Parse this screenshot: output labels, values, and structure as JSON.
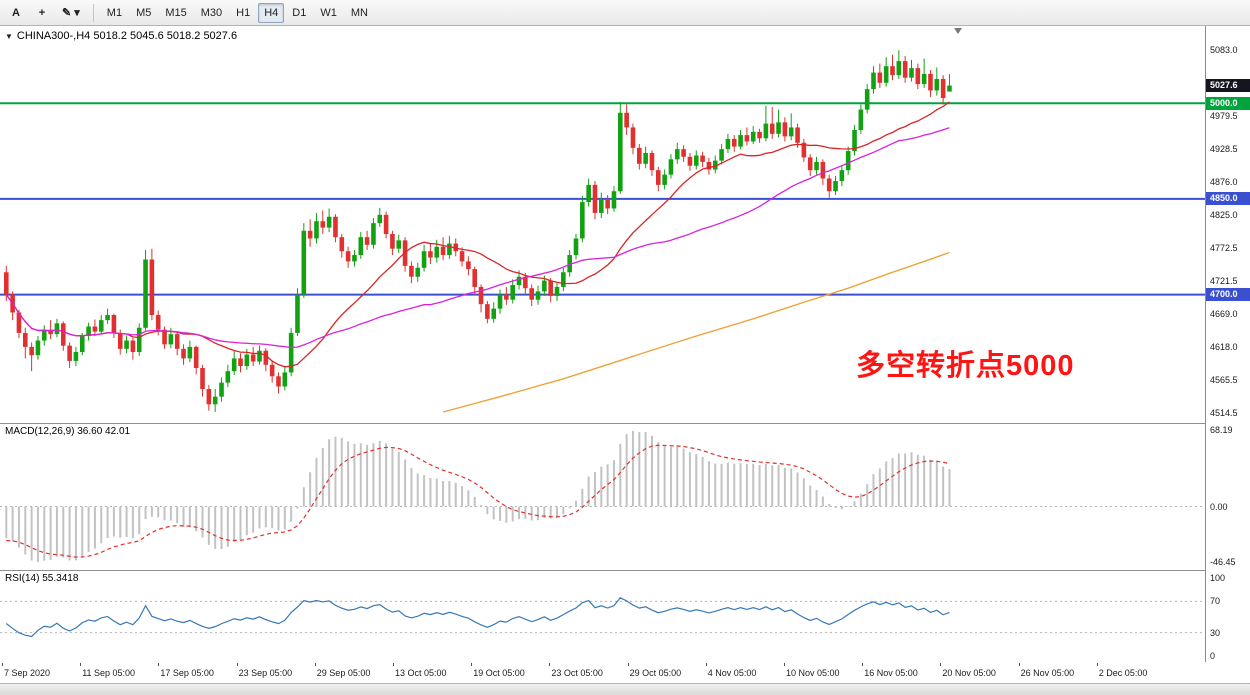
{
  "toolbar": {
    "tools": [
      {
        "name": "cursor-tool-button",
        "label": "A"
      },
      {
        "name": "crosshair-tool-button",
        "label": "+"
      },
      {
        "name": "objects-tool-button",
        "label": "✎ ▾"
      }
    ],
    "timeframes": [
      {
        "label": "M1"
      },
      {
        "label": "M5"
      },
      {
        "label": "M15"
      },
      {
        "label": "M30"
      },
      {
        "label": "H1"
      },
      {
        "label": "H4",
        "active": true
      },
      {
        "label": "D1"
      },
      {
        "label": "W1"
      },
      {
        "label": "MN"
      }
    ]
  },
  "chart": {
    "title": "CHINA300-,H4  5018.2 5045.6 5018.2 5027.6",
    "annotation": {
      "text": "多空转折点5000",
      "color": "#ff1414"
    },
    "current_price_badge": {
      "label": "5027.6",
      "price": 5027.6,
      "bg": "#15151f"
    }
  },
  "indicators": {
    "macd": {
      "label": "MACD(12,26,9) 36.60 42.01",
      "axis": [
        "68.19",
        "0.00",
        "-46.45"
      ]
    },
    "rsi": {
      "label": "RSI(14) 55.3418",
      "axis": [
        100,
        70,
        30,
        0
      ],
      "levels": [
        70,
        30
      ]
    }
  },
  "chart_data": {
    "type": "candlestick",
    "symbol": "CHINA300-",
    "timeframe": "H4",
    "ohlc_current": {
      "open": 5018.2,
      "high": 5045.6,
      "low": 5018.2,
      "close": 5027.6
    },
    "colors": {
      "up": "#12a112",
      "down": "#e03030",
      "ma_fast": "#d92525",
      "ma_slow": "#d922d9",
      "ma_long": "#eda33c",
      "macd_hist": "#c2c2c2",
      "macd_signal": "#e03030",
      "rsi_line": "#3878b8"
    },
    "y_axis_ticks": [
      "5083.0",
      "4979.5",
      "4928.5",
      "4876.0",
      "4825.0",
      "4772.5",
      "4721.5",
      "4669.0",
      "4618.0",
      "4565.5",
      "4514.5"
    ],
    "x_axis_labels": [
      "7 Sep 2020",
      "11 Sep 05:00",
      "17 Sep 05:00",
      "23 Sep 05:00",
      "29 Sep 05:00",
      "13 Oct 05:00",
      "19 Oct 05:00",
      "23 Oct 05:00",
      "29 Oct 05:00",
      "4 Nov 05:00",
      "10 Nov 05:00",
      "16 Nov 05:00",
      "20 Nov 05:00",
      "26 Nov 05:00",
      "2 Dec 05:00"
    ],
    "horizontal_lines": [
      {
        "price": 5000.0,
        "label": "5000.0",
        "color": "#00a43c"
      },
      {
        "price": 4850.0,
        "label": "4850.0",
        "color": "#3a50d0"
      },
      {
        "price": 4700.0,
        "label": "4700.0",
        "color": "#3a50d0"
      }
    ],
    "moving_averages": {
      "fast_period": 20,
      "slow_period": 45,
      "long_line_points": [
        [
          69,
          4516
        ],
        [
          78,
          4540
        ],
        [
          88,
          4568
        ],
        [
          98,
          4600
        ],
        [
          108,
          4632
        ],
        [
          118,
          4662
        ],
        [
          126,
          4688
        ],
        [
          133,
          4710
        ],
        [
          140,
          4735
        ],
        [
          145,
          4752
        ],
        [
          149,
          4766
        ]
      ]
    },
    "indicator_seeds": {
      "ema12": 4730,
      "ema26": 4752,
      "signal": -25,
      "rsi_avg_gain": 5,
      "rsi_avg_loss": 7
    },
    "candles": [
      [
        4735,
        4745,
        4690,
        4700
      ],
      [
        4700,
        4705,
        4660,
        4672
      ],
      [
        4672,
        4676,
        4632,
        4640
      ],
      [
        4640,
        4648,
        4600,
        4618
      ],
      [
        4618,
        4625,
        4580,
        4605
      ],
      [
        4605,
        4635,
        4598,
        4628
      ],
      [
        4628,
        4652,
        4620,
        4645
      ],
      [
        4645,
        4660,
        4630,
        4638
      ],
      [
        4638,
        4662,
        4633,
        4655
      ],
      [
        4655,
        4658,
        4612,
        4620
      ],
      [
        4620,
        4625,
        4585,
        4596
      ],
      [
        4596,
        4618,
        4588,
        4610
      ],
      [
        4610,
        4640,
        4605,
        4635
      ],
      [
        4635,
        4656,
        4628,
        4650
      ],
      [
        4650,
        4661,
        4635,
        4642
      ],
      [
        4642,
        4668,
        4638,
        4660
      ],
      [
        4660,
        4678,
        4654,
        4668
      ],
      [
        4668,
        4670,
        4632,
        4640
      ],
      [
        4640,
        4645,
        4606,
        4615
      ],
      [
        4615,
        4636,
        4608,
        4628
      ],
      [
        4628,
        4632,
        4598,
        4610
      ],
      [
        4610,
        4655,
        4604,
        4648
      ],
      [
        4648,
        4770,
        4644,
        4755
      ],
      [
        4755,
        4772,
        4660,
        4668
      ],
      [
        4668,
        4675,
        4636,
        4645
      ],
      [
        4645,
        4650,
        4615,
        4622
      ],
      [
        4622,
        4648,
        4616,
        4638
      ],
      [
        4638,
        4642,
        4605,
        4615
      ],
      [
        4615,
        4622,
        4590,
        4600
      ],
      [
        4600,
        4628,
        4594,
        4618
      ],
      [
        4618,
        4620,
        4575,
        4585
      ],
      [
        4585,
        4590,
        4540,
        4552
      ],
      [
        4552,
        4558,
        4518,
        4528
      ],
      [
        4528,
        4552,
        4516,
        4540
      ],
      [
        4540,
        4570,
        4532,
        4562
      ],
      [
        4562,
        4590,
        4555,
        4580
      ],
      [
        4580,
        4612,
        4574,
        4600
      ],
      [
        4600,
        4608,
        4578,
        4588
      ],
      [
        4588,
        4615,
        4582,
        4606
      ],
      [
        4606,
        4618,
        4588,
        4595
      ],
      [
        4595,
        4620,
        4590,
        4612
      ],
      [
        4612,
        4616,
        4580,
        4590
      ],
      [
        4590,
        4596,
        4562,
        4572
      ],
      [
        4572,
        4578,
        4545,
        4556
      ],
      [
        4556,
        4588,
        4550,
        4578
      ],
      [
        4578,
        4648,
        4572,
        4640
      ],
      [
        4640,
        4710,
        4635,
        4700
      ],
      [
        4700,
        4812,
        4695,
        4800
      ],
      [
        4800,
        4818,
        4775,
        4788
      ],
      [
        4788,
        4828,
        4780,
        4815
      ],
      [
        4815,
        4832,
        4795,
        4805
      ],
      [
        4805,
        4835,
        4798,
        4822
      ],
      [
        4822,
        4826,
        4782,
        4790
      ],
      [
        4790,
        4795,
        4758,
        4768
      ],
      [
        4768,
        4775,
        4742,
        4752
      ],
      [
        4752,
        4770,
        4744,
        4762
      ],
      [
        4762,
        4798,
        4756,
        4790
      ],
      [
        4790,
        4800,
        4770,
        4778
      ],
      [
        4778,
        4820,
        4772,
        4812
      ],
      [
        4812,
        4836,
        4806,
        4825
      ],
      [
        4825,
        4830,
        4788,
        4795
      ],
      [
        4795,
        4800,
        4762,
        4772
      ],
      [
        4772,
        4794,
        4765,
        4785
      ],
      [
        4785,
        4790,
        4736,
        4745
      ],
      [
        4745,
        4752,
        4718,
        4728
      ],
      [
        4728,
        4750,
        4720,
        4742
      ],
      [
        4742,
        4778,
        4736,
        4768
      ],
      [
        4768,
        4780,
        4748,
        4758
      ],
      [
        4758,
        4786,
        4750,
        4775
      ],
      [
        4775,
        4790,
        4754,
        4762
      ],
      [
        4762,
        4792,
        4756,
        4780
      ],
      [
        4780,
        4788,
        4760,
        4768
      ],
      [
        4768,
        4774,
        4744,
        4752
      ],
      [
        4752,
        4760,
        4730,
        4740
      ],
      [
        4740,
        4744,
        4700,
        4712
      ],
      [
        4712,
        4716,
        4672,
        4685
      ],
      [
        4685,
        4690,
        4655,
        4662
      ],
      [
        4662,
        4688,
        4656,
        4678
      ],
      [
        4678,
        4708,
        4670,
        4700
      ],
      [
        4700,
        4712,
        4684,
        4692
      ],
      [
        4692,
        4724,
        4686,
        4715
      ],
      [
        4715,
        4738,
        4708,
        4728
      ],
      [
        4728,
        4734,
        4700,
        4710
      ],
      [
        4710,
        4716,
        4682,
        4692
      ],
      [
        4692,
        4714,
        4684,
        4705
      ],
      [
        4705,
        4730,
        4698,
        4722
      ],
      [
        4722,
        4726,
        4688,
        4698
      ],
      [
        4698,
        4720,
        4690,
        4712
      ],
      [
        4712,
        4742,
        4705,
        4735
      ],
      [
        4735,
        4770,
        4728,
        4762
      ],
      [
        4762,
        4795,
        4755,
        4788
      ],
      [
        4788,
        4855,
        4782,
        4845
      ],
      [
        4845,
        4882,
        4838,
        4872
      ],
      [
        4872,
        4878,
        4818,
        4828
      ],
      [
        4828,
        4860,
        4820,
        4850
      ],
      [
        4850,
        4856,
        4826,
        4835
      ],
      [
        4835,
        4870,
        4830,
        4862
      ],
      [
        4862,
        5002,
        4858,
        4985
      ],
      [
        4985,
        4998,
        4950,
        4962
      ],
      [
        4962,
        4968,
        4920,
        4930
      ],
      [
        4930,
        4936,
        4896,
        4905
      ],
      [
        4905,
        4932,
        4898,
        4922
      ],
      [
        4922,
        4926,
        4886,
        4895
      ],
      [
        4895,
        4900,
        4862,
        4872
      ],
      [
        4872,
        4896,
        4865,
        4888
      ],
      [
        4888,
        4920,
        4882,
        4912
      ],
      [
        4912,
        4938,
        4905,
        4928
      ],
      [
        4928,
        4934,
        4908,
        4916
      ],
      [
        4916,
        4922,
        4894,
        4902
      ],
      [
        4902,
        4926,
        4896,
        4918
      ],
      [
        4918,
        4924,
        4900,
        4908
      ],
      [
        4908,
        4914,
        4888,
        4896
      ],
      [
        4896,
        4918,
        4890,
        4910
      ],
      [
        4910,
        4936,
        4904,
        4928
      ],
      [
        4928,
        4952,
        4922,
        4944
      ],
      [
        4944,
        4950,
        4924,
        4932
      ],
      [
        4932,
        4958,
        4928,
        4950
      ],
      [
        4950,
        4962,
        4934,
        4940
      ],
      [
        4940,
        4964,
        4936,
        4955
      ],
      [
        4955,
        4960,
        4938,
        4945
      ],
      [
        4945,
        4996,
        4940,
        4968
      ],
      [
        4968,
        4994,
        4944,
        4952
      ],
      [
        4952,
        4990,
        4946,
        4970
      ],
      [
        4970,
        4978,
        4940,
        4948
      ],
      [
        4948,
        4984,
        4942,
        4962
      ],
      [
        4962,
        4968,
        4930,
        4938
      ],
      [
        4938,
        4944,
        4908,
        4915
      ],
      [
        4915,
        4920,
        4886,
        4895
      ],
      [
        4895,
        4916,
        4888,
        4908
      ],
      [
        4908,
        4912,
        4872,
        4882
      ],
      [
        4882,
        4888,
        4852,
        4862
      ],
      [
        4862,
        4886,
        4856,
        4878
      ],
      [
        4878,
        4902,
        4870,
        4895
      ],
      [
        4895,
        4932,
        4888,
        4925
      ],
      [
        4925,
        4966,
        4918,
        4958
      ],
      [
        4958,
        4998,
        4952,
        4990
      ],
      [
        4990,
        5030,
        4984,
        5022
      ],
      [
        5022,
        5058,
        5015,
        5048
      ],
      [
        5048,
        5062,
        5024,
        5032
      ],
      [
        5032,
        5072,
        5026,
        5058
      ],
      [
        5058,
        5076,
        5036,
        5044
      ],
      [
        5044,
        5083,
        5038,
        5066
      ],
      [
        5066,
        5074,
        5032,
        5040
      ],
      [
        5040,
        5068,
        5034,
        5055
      ],
      [
        5055,
        5062,
        5022,
        5030
      ],
      [
        5030,
        5070,
        5024,
        5046
      ],
      [
        5046,
        5052,
        5010,
        5020
      ],
      [
        5020,
        5056,
        5012,
        5038
      ],
      [
        5038,
        5044,
        4998,
        5008
      ],
      [
        5018.2,
        5045.6,
        5018.2,
        5027.6
      ]
    ]
  }
}
